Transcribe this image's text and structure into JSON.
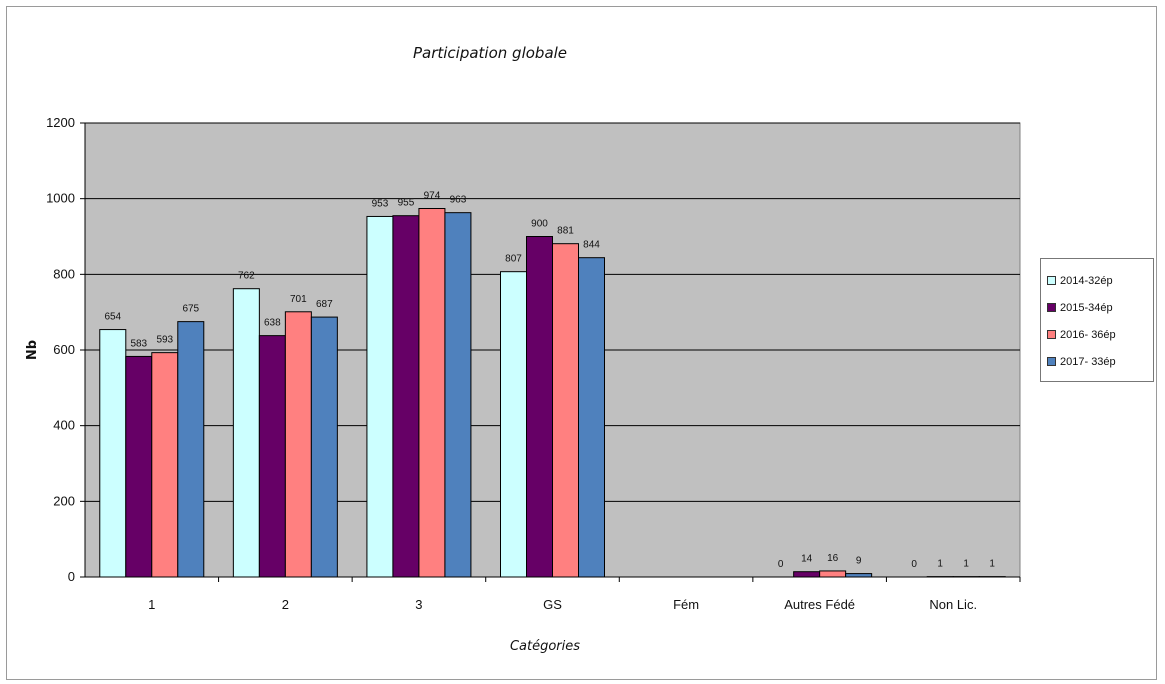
{
  "chart_data": {
    "type": "bar",
    "title": "Participation globale",
    "xlabel": "Catégories",
    "ylabel": "Nb",
    "ylim": [
      0,
      1200
    ],
    "yticks": [
      0,
      200,
      400,
      600,
      800,
      1000,
      1200
    ],
    "grid": true,
    "plot_background": "#c0c0c0",
    "legend_position": "right",
    "categories": [
      "1",
      "2",
      "3",
      "GS",
      "Fém",
      "Autres Fédé",
      "Non Lic."
    ],
    "series": [
      {
        "name": "2014-32ép",
        "color": "#ccffff",
        "values": [
          654,
          762,
          953,
          807,
          null,
          0,
          0
        ],
        "labels": [
          "654",
          "762",
          "953",
          "807",
          "",
          "0",
          "0"
        ]
      },
      {
        "name": "2015-34ép",
        "color": "#660066",
        "values": [
          583,
          638,
          955,
          900,
          null,
          14,
          1
        ],
        "labels": [
          "583",
          "638",
          "955",
          "900",
          "",
          "14",
          "1"
        ]
      },
      {
        "name": "2016- 36ép",
        "color": "#ff8080",
        "values": [
          593,
          701,
          974,
          881,
          null,
          16,
          1
        ],
        "labels": [
          "593",
          "701",
          "974",
          "881",
          "",
          "16",
          "1"
        ]
      },
      {
        "name": "2017- 33ép",
        "color": "#4f81bd",
        "values": [
          675,
          687,
          963,
          844,
          null,
          9,
          1
        ],
        "labels": [
          "675",
          "687",
          "963",
          "844",
          "",
          "9",
          "1"
        ]
      }
    ]
  }
}
